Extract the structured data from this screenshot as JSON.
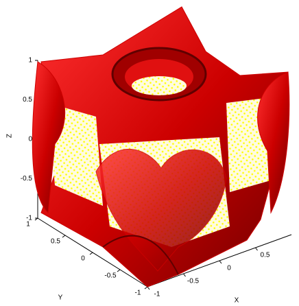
{
  "chart_data": {
    "type": "isosurface",
    "x_label": "X",
    "y_label": "Y",
    "z_label": "Z",
    "xlim": [
      -1,
      1
    ],
    "ylim": [
      -1,
      1
    ],
    "zlim": [
      -1,
      1
    ],
    "xticks": [
      -1,
      -0.5,
      0,
      0.5
    ],
    "yticks": [
      -1,
      -0.5,
      0,
      0.5,
      1
    ],
    "zticks": [
      -1,
      -0.5,
      0,
      0.5,
      1
    ],
    "surface_color": "#cc0000",
    "point_color": "#ffff00"
  }
}
